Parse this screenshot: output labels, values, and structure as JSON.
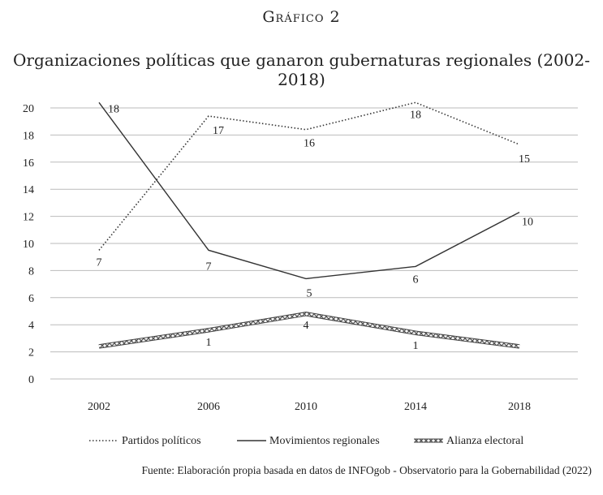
{
  "figure_label": "Gráfico 2",
  "source": "Fuente: Elaboración propia basada en datos de INFOgob - Observatorio para la Gobernabilidad (2022)",
  "chart_data": {
    "type": "line",
    "title": "Organizaciones políticas que ganaron gubernaturas regionales (2002-2018)",
    "categories": [
      "2002",
      "2006",
      "2010",
      "2014",
      "2018"
    ],
    "ylim": [
      0,
      20
    ],
    "yticks": [
      0,
      2,
      4,
      6,
      8,
      10,
      12,
      14,
      16,
      18,
      20
    ],
    "grid": true,
    "legend": "bottom",
    "series": [
      {
        "name": "Partidos políticos",
        "style": "dotted",
        "color": "#333333",
        "values": [
          9.5,
          19.4,
          18.4,
          20.4,
          17.3
        ],
        "labels": [
          "7",
          "17",
          "16",
          "18",
          "15"
        ]
      },
      {
        "name": "Movimientos regionales",
        "style": "solid",
        "color": "#333333",
        "values": [
          20.4,
          9.5,
          7.4,
          8.3,
          12.3
        ],
        "labels": [
          "18",
          "7",
          "5",
          "6",
          "10"
        ]
      },
      {
        "name": "Alianza electoral",
        "style": "chain",
        "color": "#555555",
        "values": [
          2.4,
          3.6,
          4.8,
          3.4,
          2.4
        ],
        "labels": [
          "",
          "1",
          "4",
          "1",
          ""
        ]
      }
    ]
  }
}
